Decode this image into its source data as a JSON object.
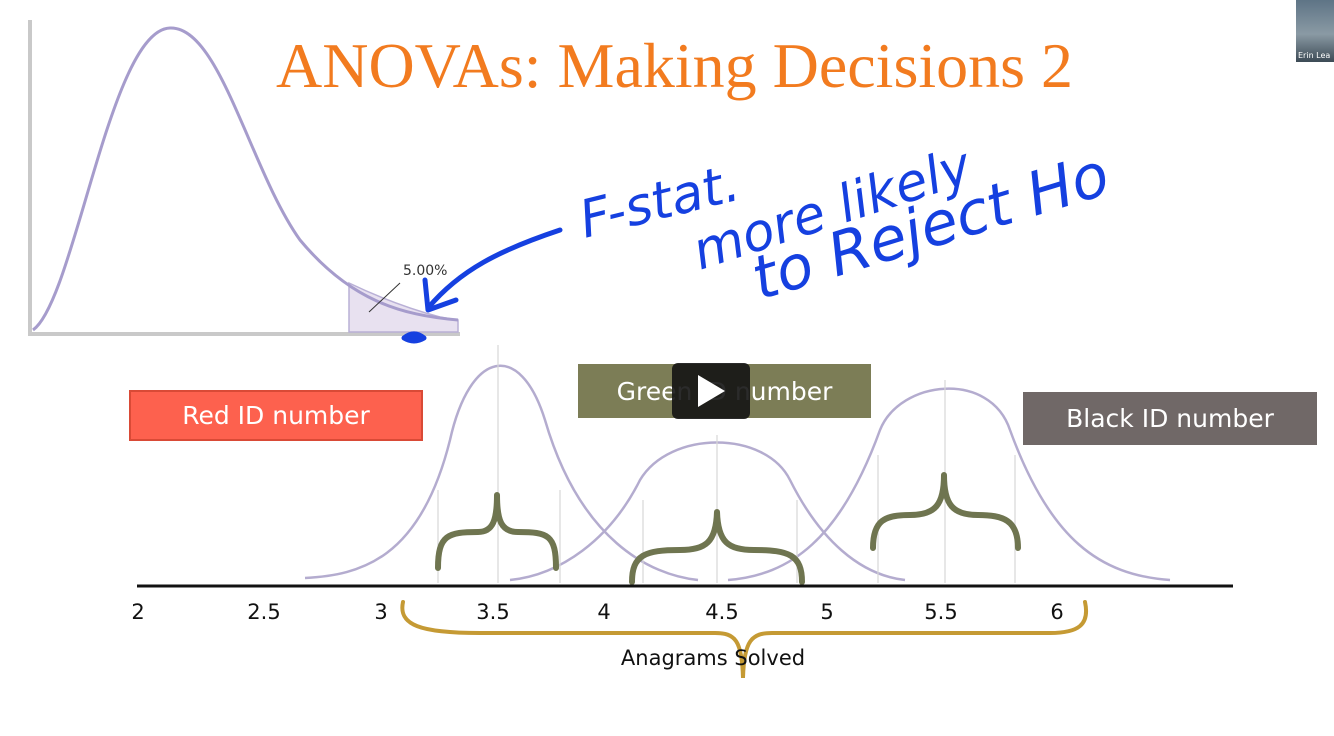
{
  "title": "ANOVAs: Making Decisions 2",
  "f_distribution": {
    "tail_percent_label": "5.00%",
    "line_color": "#a69ccc",
    "tail_fill_color": "#e8e1f0"
  },
  "annotation": {
    "line1": "F-stat.",
    "line2": "more likely",
    "line3": "to Reject Ho",
    "ink_color": "#1540e0"
  },
  "groups": [
    {
      "label": "Red ID number",
      "color": "#fd614e"
    },
    {
      "label": "Green ID number",
      "color": "#7c7d56"
    },
    {
      "label": "Black ID number",
      "color": "#706867"
    }
  ],
  "axis": {
    "ticks": [
      "2",
      "2.5",
      "3",
      "3.5",
      "4",
      "4.5",
      "5",
      "5.5",
      "6"
    ],
    "title": "Anagrams Solved"
  },
  "video": {
    "play_icon": "play-icon",
    "webcam_name": "Erin Lea"
  }
}
